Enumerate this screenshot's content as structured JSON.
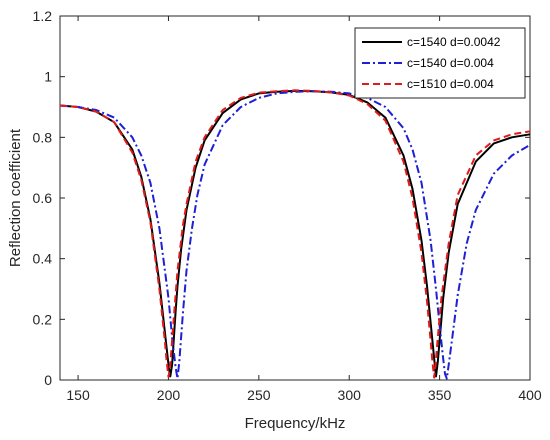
{
  "chart_data": {
    "type": "line",
    "title": "",
    "xlabel": "Frequency/kHz",
    "ylabel": "Reflection coefficient",
    "xlim": [
      140,
      400
    ],
    "ylim": [
      0,
      1.2
    ],
    "xticks": [
      150,
      200,
      250,
      300,
      350,
      400
    ],
    "yticks": [
      0,
      0.2,
      0.4,
      0.6,
      0.8,
      1,
      1.2
    ],
    "grid": false,
    "legend_position": "top-right",
    "series": [
      {
        "name": "c=1540 d=0.0042",
        "color": "#000000",
        "line_style": "solid",
        "x": [
          140,
          150,
          160,
          170,
          180,
          185,
          190,
          195,
          198,
          200,
          201,
          202,
          203,
          204,
          205,
          207,
          210,
          215,
          220,
          230,
          240,
          250,
          260,
          270,
          280,
          290,
          300,
          310,
          320,
          330,
          335,
          340,
          343,
          345,
          347,
          348,
          349,
          350,
          352,
          355,
          360,
          370,
          380,
          390,
          400
        ],
        "y": [
          0.905,
          0.9,
          0.885,
          0.85,
          0.76,
          0.67,
          0.53,
          0.32,
          0.16,
          0.05,
          0.012,
          0.05,
          0.14,
          0.23,
          0.31,
          0.43,
          0.56,
          0.7,
          0.79,
          0.88,
          0.925,
          0.945,
          0.95,
          0.953,
          0.952,
          0.948,
          0.94,
          0.915,
          0.865,
          0.74,
          0.63,
          0.46,
          0.31,
          0.19,
          0.07,
          0.012,
          0.06,
          0.13,
          0.27,
          0.42,
          0.58,
          0.72,
          0.78,
          0.8,
          0.81
        ]
      },
      {
        "name": "c=1540 d=0.004",
        "color": "#1f1fd6",
        "line_style": "dashdot",
        "x": [
          140,
          150,
          160,
          170,
          180,
          185,
          190,
          195,
          200,
          202,
          204,
          205,
          206,
          207,
          208,
          210,
          213,
          216,
          220,
          230,
          240,
          250,
          260,
          270,
          280,
          290,
          300,
          310,
          320,
          330,
          335,
          340,
          345,
          348,
          350,
          352,
          353,
          354,
          355,
          357,
          360,
          365,
          370,
          380,
          390,
          400
        ],
        "y": [
          0.905,
          0.9,
          0.89,
          0.865,
          0.8,
          0.74,
          0.65,
          0.5,
          0.27,
          0.14,
          0.04,
          0.005,
          0.06,
          0.14,
          0.22,
          0.36,
          0.5,
          0.61,
          0.71,
          0.84,
          0.9,
          0.93,
          0.945,
          0.95,
          0.952,
          0.95,
          0.945,
          0.93,
          0.9,
          0.83,
          0.76,
          0.65,
          0.46,
          0.3,
          0.18,
          0.07,
          0.02,
          0.005,
          0.05,
          0.14,
          0.28,
          0.45,
          0.56,
          0.68,
          0.74,
          0.775
        ]
      },
      {
        "name": "c=1510 d=0.004",
        "color": "#e01b1b",
        "line_style": "dashed",
        "x": [
          140,
          150,
          160,
          170,
          180,
          185,
          190,
          195,
          198,
          199,
          200,
          201,
          202,
          203,
          205,
          208,
          210,
          215,
          220,
          230,
          240,
          250,
          260,
          270,
          280,
          290,
          300,
          310,
          320,
          330,
          335,
          340,
          343,
          345,
          346,
          347,
          348,
          349,
          351,
          355,
          360,
          370,
          380,
          390,
          400
        ],
        "y": [
          0.905,
          0.9,
          0.885,
          0.85,
          0.75,
          0.66,
          0.52,
          0.3,
          0.13,
          0.06,
          0.01,
          0.05,
          0.13,
          0.21,
          0.36,
          0.51,
          0.58,
          0.72,
          0.8,
          0.89,
          0.93,
          0.947,
          0.952,
          0.955,
          0.953,
          0.948,
          0.938,
          0.91,
          0.855,
          0.72,
          0.6,
          0.42,
          0.26,
          0.13,
          0.06,
          0.008,
          0.07,
          0.14,
          0.27,
          0.45,
          0.61,
          0.74,
          0.79,
          0.81,
          0.82
        ]
      }
    ]
  }
}
